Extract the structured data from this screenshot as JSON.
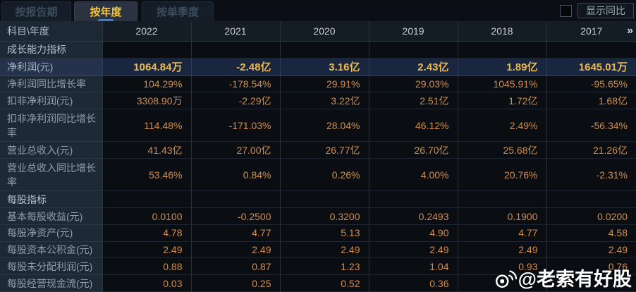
{
  "tabs": {
    "items": [
      {
        "label": "按报告期",
        "active": false
      },
      {
        "label": "按年度",
        "active": true
      },
      {
        "label": "按单季度",
        "active": false
      }
    ]
  },
  "controls": {
    "show_yoy_label": "显示同比",
    "checkbox_checked": false
  },
  "table": {
    "corner_header": "科目\\年度",
    "years": [
      "2022",
      "2021",
      "2020",
      "2019",
      "2018",
      "2017"
    ],
    "more_icon": "»",
    "rows": [
      {
        "type": "section",
        "label": "成长能力指标"
      },
      {
        "type": "data",
        "label": "净利润(元)",
        "highlight": true,
        "values": [
          "1064.84万",
          "-2.48亿",
          "3.16亿",
          "2.43亿",
          "1.89亿",
          "1645.01万"
        ]
      },
      {
        "type": "data",
        "label": "净利润同比增长率",
        "values": [
          "104.29%",
          "-178.54%",
          "29.91%",
          "29.03%",
          "1045.91%",
          "-95.65%"
        ]
      },
      {
        "type": "data",
        "label": "扣非净利润(元)",
        "values": [
          "3308.90万",
          "-2.29亿",
          "3.22亿",
          "2.51亿",
          "1.72亿",
          "1.68亿"
        ]
      },
      {
        "type": "data",
        "label": "扣非净利润同比增长率",
        "values": [
          "114.48%",
          "-171.03%",
          "28.04%",
          "46.12%",
          "2.49%",
          "-56.34%"
        ]
      },
      {
        "type": "data",
        "label": "营业总收入(元)",
        "values": [
          "41.43亿",
          "27.00亿",
          "26.77亿",
          "26.70亿",
          "25.68亿",
          "21.26亿"
        ]
      },
      {
        "type": "data",
        "label": "营业总收入同比增长率",
        "values": [
          "53.46%",
          "0.84%",
          "0.26%",
          "4.00%",
          "20.76%",
          "-2.31%"
        ]
      },
      {
        "type": "section",
        "label": "每股指标"
      },
      {
        "type": "data",
        "label": "基本每股收益(元)",
        "values": [
          "0.0100",
          "-0.2500",
          "0.3200",
          "0.2493",
          "0.1900",
          "0.0200"
        ]
      },
      {
        "type": "data",
        "label": "每股净资产(元)",
        "values": [
          "4.78",
          "4.77",
          "5.13",
          "4.90",
          "4.77",
          "4.58"
        ]
      },
      {
        "type": "data",
        "label": "每股资本公积金(元)",
        "values": [
          "2.49",
          "2.49",
          "2.49",
          "2.49",
          "2.49",
          "2.49"
        ]
      },
      {
        "type": "data",
        "label": "每股未分配利润(元)",
        "values": [
          "0.88",
          "0.87",
          "1.23",
          "1.04",
          "0.93",
          "0.76"
        ]
      },
      {
        "type": "data",
        "label": "每股经营现金流(元)",
        "values": [
          "0.03",
          "0.25",
          "0.52",
          "0.36",
          "",
          ""
        ]
      }
    ]
  },
  "watermark": {
    "text": "@老索有好股",
    "icon": "weibo-icon"
  },
  "colors": {
    "accent_gold": "#f5c53d",
    "value_orange": "#d08f50",
    "highlight_row_bg": "#192640",
    "label_col_bg": "#1d2935",
    "header_row_bg": "#141c26",
    "cell_bg": "#0a0d11"
  }
}
